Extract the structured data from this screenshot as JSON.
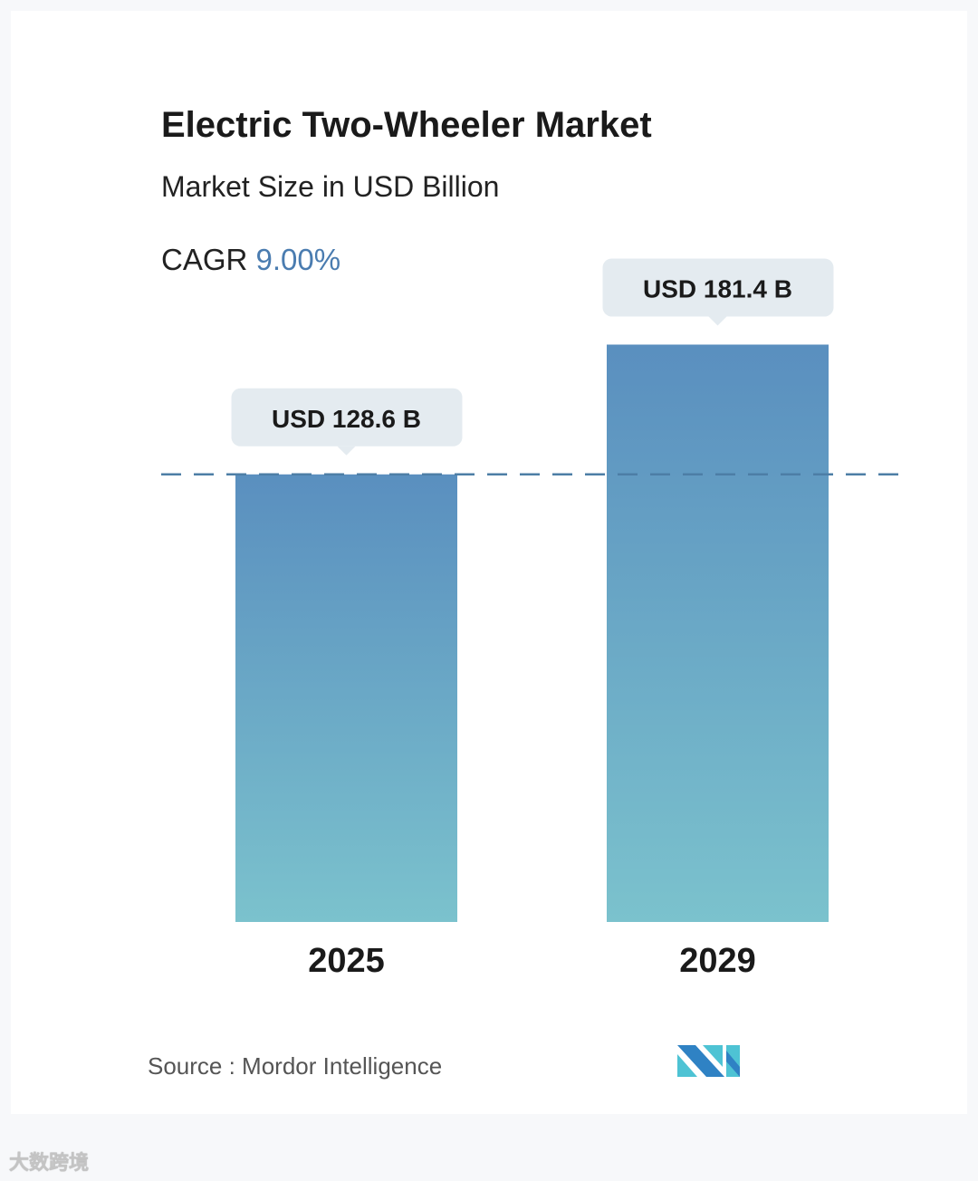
{
  "chart_data": {
    "type": "bar",
    "title": "Electric Two-Wheeler Market",
    "subtitle": "Market Size in USD Billion",
    "cagr_label": "CAGR",
    "cagr_value": "9.00%",
    "categories": [
      "2025",
      "2029"
    ],
    "values": [
      128.6,
      181.4
    ],
    "data_labels": [
      "USD 128.6 B",
      "USD 181.4 B"
    ],
    "ylim": [
      -53.5,
      200
    ],
    "reference_line_value": 128.6,
    "colors": {
      "bar_top": "#5a8fbf",
      "bar_bottom": "#7bc2cd",
      "label_bg": "#e4ebf0",
      "dash": "#4d7ea6"
    }
  },
  "source": "Source : Mordor Intelligence",
  "logo_text": "MI",
  "watermark": "大数跨境"
}
